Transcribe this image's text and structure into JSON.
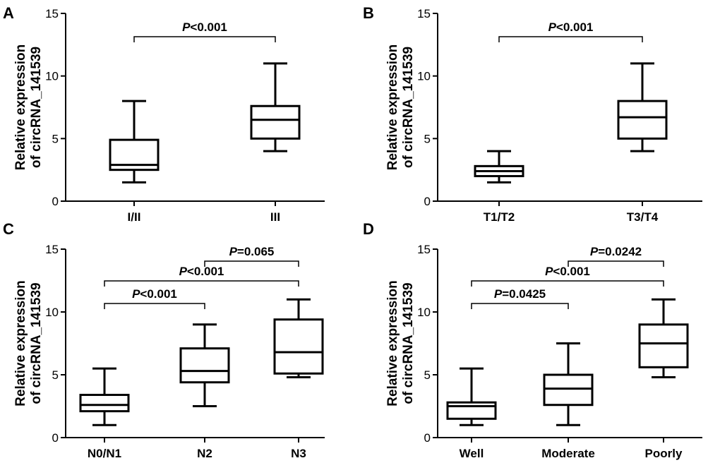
{
  "chart_data": [
    {
      "panel": "A",
      "type": "boxplot",
      "ylabel_line1": "Relative expression",
      "ylabel_line2": "of circRNA_141539",
      "ylim": [
        0,
        15
      ],
      "yticks": [
        0,
        5,
        10,
        15
      ],
      "categories": [
        "I/II",
        "III"
      ],
      "boxes": [
        {
          "min": 1.5,
          "q1": 2.5,
          "median": 2.9,
          "q3": 4.9,
          "max": 8.0
        },
        {
          "min": 4.0,
          "q1": 5.0,
          "median": 6.5,
          "q3": 7.6,
          "max": 11.0
        }
      ],
      "comparisons": [
        {
          "from": 0,
          "to": 1,
          "p_italic": "P",
          "p_value": "<0.001"
        }
      ]
    },
    {
      "panel": "B",
      "type": "boxplot",
      "ylabel_line1": "Relative expression",
      "ylabel_line2": "of circRNA_141539",
      "ylim": [
        0,
        15
      ],
      "yticks": [
        0,
        5,
        10,
        15
      ],
      "categories": [
        "T1/T2",
        "T3/T4"
      ],
      "boxes": [
        {
          "min": 1.5,
          "q1": 2.0,
          "median": 2.4,
          "q3": 2.8,
          "max": 4.0
        },
        {
          "min": 4.0,
          "q1": 5.0,
          "median": 6.7,
          "q3": 8.0,
          "max": 11.0
        }
      ],
      "comparisons": [
        {
          "from": 0,
          "to": 1,
          "p_italic": "P",
          "p_value": "<0.001"
        }
      ]
    },
    {
      "panel": "C",
      "type": "boxplot",
      "ylabel_line1": "Relative expression",
      "ylabel_line2": "of circRNA_141539",
      "ylim": [
        0,
        15
      ],
      "yticks": [
        0,
        5,
        10,
        15
      ],
      "categories": [
        "N0/N1",
        "N2",
        "N3"
      ],
      "boxes": [
        {
          "min": 1.0,
          "q1": 2.1,
          "median": 2.6,
          "q3": 3.4,
          "max": 5.5
        },
        {
          "min": 2.5,
          "q1": 4.4,
          "median": 5.3,
          "q3": 7.1,
          "max": 9.0
        },
        {
          "min": 4.8,
          "q1": 5.1,
          "median": 6.8,
          "q3": 9.4,
          "max": 11.0
        }
      ],
      "comparisons": [
        {
          "from": 1,
          "to": 2,
          "p_italic": "P",
          "p_value": "=0.065"
        },
        {
          "from": 0,
          "to": 2,
          "p_italic": "P",
          "p_value": "<0.001"
        },
        {
          "from": 0,
          "to": 1,
          "p_italic": "P",
          "p_value": "<0.001"
        }
      ]
    },
    {
      "panel": "D",
      "type": "boxplot",
      "ylabel_line1": "Relative expression",
      "ylabel_line2": "of circRNA_141539",
      "ylim": [
        0,
        15
      ],
      "yticks": [
        0,
        5,
        10,
        15
      ],
      "categories": [
        "Well",
        "Moderate",
        "Poorly"
      ],
      "boxes": [
        {
          "min": 1.0,
          "q1": 1.5,
          "median": 2.5,
          "q3": 2.8,
          "max": 5.5
        },
        {
          "min": 1.0,
          "q1": 2.6,
          "median": 3.9,
          "q3": 5.0,
          "max": 7.5
        },
        {
          "min": 4.8,
          "q1": 5.6,
          "median": 7.5,
          "q3": 9.0,
          "max": 11.0
        }
      ],
      "comparisons": [
        {
          "from": 1,
          "to": 2,
          "p_italic": "P",
          "p_value": "=0.0242"
        },
        {
          "from": 0,
          "to": 2,
          "p_italic": "P",
          "p_value": "<0.001"
        },
        {
          "from": 0,
          "to": 1,
          "p_italic": "P",
          "p_value": "=0.0425"
        }
      ]
    }
  ]
}
